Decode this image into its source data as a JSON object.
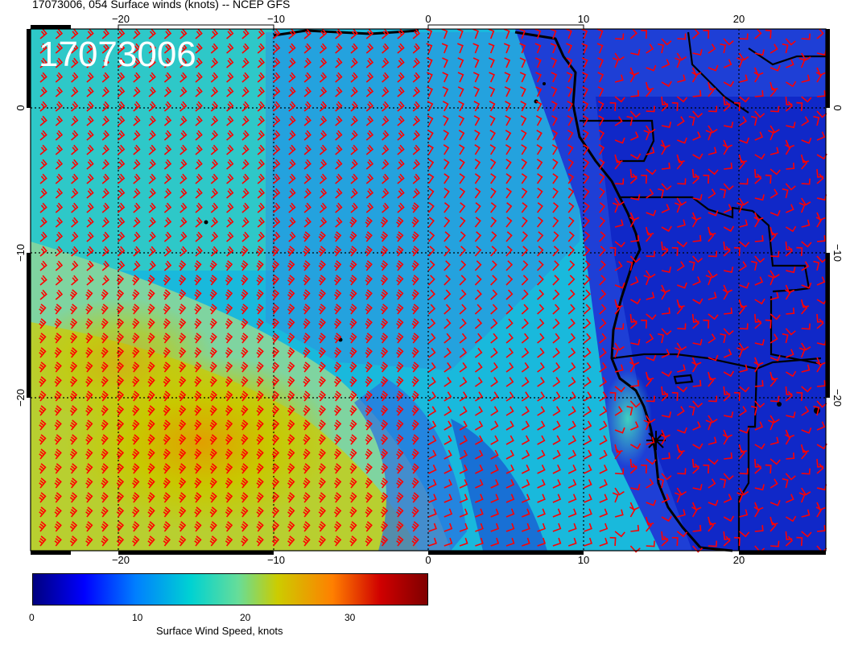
{
  "title": "17073006, 054 Surface winds (knots) -- NCEP GFS",
  "overlay_label": "17073006",
  "lon_ticks": [
    "−20",
    "−10",
    "0",
    "10",
    "20"
  ],
  "lat_ticks": [
    "0",
    "−10",
    "−20"
  ],
  "colorbar": {
    "title": "Surface Wind Speed, knots",
    "ticks": [
      "0",
      "10",
      "20",
      "30"
    ]
  },
  "map": {
    "region": "South-East Atlantic / Southern Africa west coast",
    "field": "surface wind speed with wind barbs",
    "barb_color": "#ff0000",
    "land_outline_color": "#000000"
  }
}
